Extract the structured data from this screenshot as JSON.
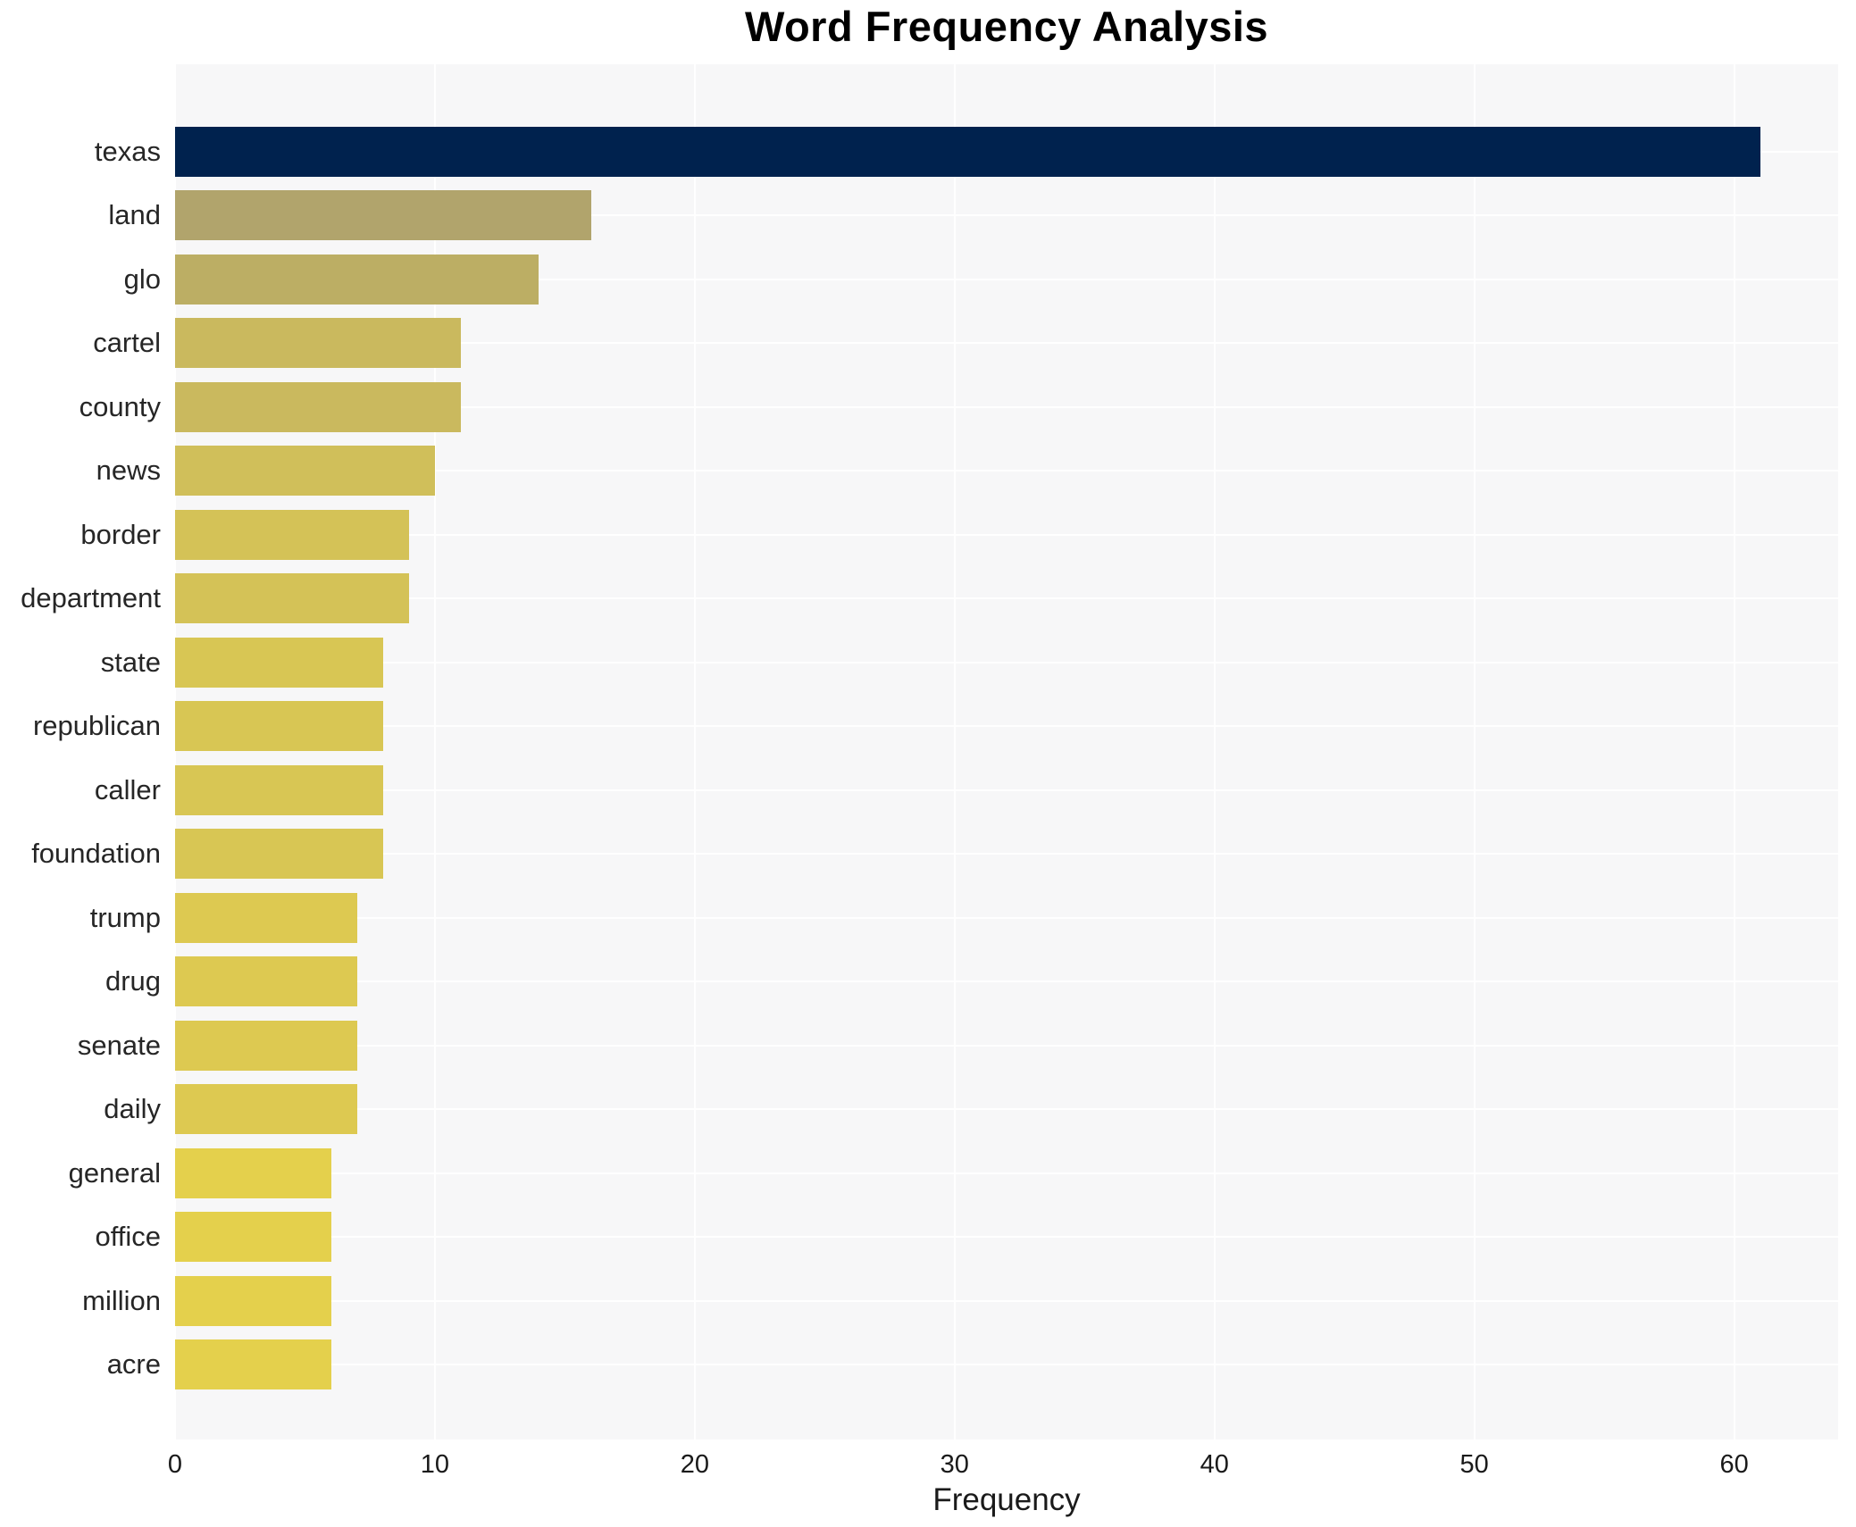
{
  "chart_data": {
    "type": "bar",
    "orientation": "horizontal",
    "title": "Word Frequency Analysis",
    "xlabel": "Frequency",
    "ylabel": "",
    "xlim": [
      0,
      64
    ],
    "xticks": [
      0,
      10,
      20,
      30,
      40,
      50,
      60
    ],
    "grid": true,
    "legend": false,
    "categories": [
      "texas",
      "land",
      "glo",
      "cartel",
      "county",
      "news",
      "border",
      "department",
      "state",
      "republican",
      "caller",
      "foundation",
      "trump",
      "drug",
      "senate",
      "daily",
      "general",
      "office",
      "million",
      "acre"
    ],
    "values": [
      61,
      16,
      14,
      11,
      11,
      10,
      9,
      9,
      8,
      8,
      8,
      8,
      7,
      7,
      7,
      7,
      6,
      6,
      6,
      6
    ],
    "bar_colors": [
      "#00224e",
      "#b1a46c",
      "#bcae64",
      "#cab95e",
      "#cab95e",
      "#d0bf5a",
      "#d4c257",
      "#d4c257",
      "#d8c654",
      "#d8c654",
      "#d8c654",
      "#d8c654",
      "#ddc951",
      "#ddc951",
      "#ddc951",
      "#ddc951",
      "#e4d04c",
      "#e4d04c",
      "#e4d04c",
      "#e4d04c"
    ]
  },
  "colors": {
    "page_background": "#ffffff",
    "plot_background": "#f7f7f8",
    "gridline": "#ffffff",
    "title_text": "#000000",
    "axis_text": "#262626",
    "max_bar": "#00224e"
  }
}
